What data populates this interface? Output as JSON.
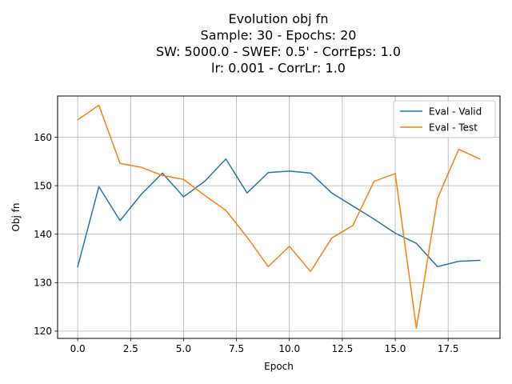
{
  "chart_data": {
    "type": "line",
    "title": [
      "Evolution obj fn",
      "Sample: 30 - Epochs: 20",
      "SW: 5000.0 - SWEF: 0.5' - CorrEps: 1.0",
      "lr: 0.001 - CorrLr: 1.0"
    ],
    "xlabel": "Epoch",
    "ylabel": "Obj fn",
    "xlim": [
      -0.95,
      19.95
    ],
    "ylim": [
      118.5,
      168.5
    ],
    "xticks": [
      0.0,
      2.5,
      5.0,
      7.5,
      10.0,
      12.5,
      15.0,
      17.5
    ],
    "xtick_labels": [
      "0.0",
      "2.5",
      "5.0",
      "7.5",
      "10.0",
      "12.5",
      "15.0",
      "17.5"
    ],
    "yticks": [
      120,
      130,
      140,
      150,
      160
    ],
    "ytick_labels": [
      "120",
      "130",
      "140",
      "150",
      "160"
    ],
    "grid": true,
    "legend_position": "top-right",
    "x": [
      0,
      1,
      2,
      3,
      4,
      5,
      6,
      7,
      8,
      9,
      10,
      11,
      12,
      13,
      14,
      15,
      16,
      17,
      18,
      19
    ],
    "series": [
      {
        "name": "Eval - Valid",
        "color": "#1f77b4",
        "values": [
          133.3,
          149.8,
          142.8,
          148.2,
          152.6,
          147.7,
          150.9,
          155.5,
          148.5,
          152.7,
          153.0,
          152.6,
          148.5,
          145.8,
          143.1,
          140.2,
          138.1,
          133.3,
          134.4,
          134.6
        ]
      },
      {
        "name": "Eval - Test",
        "color": "#ff7f0e",
        "values": [
          163.6,
          166.6,
          154.6,
          153.8,
          152.1,
          151.3,
          148.0,
          144.9,
          139.4,
          133.3,
          137.5,
          132.3,
          139.2,
          141.8,
          150.9,
          152.5,
          120.6,
          147.4,
          157.5,
          155.5
        ]
      }
    ]
  }
}
